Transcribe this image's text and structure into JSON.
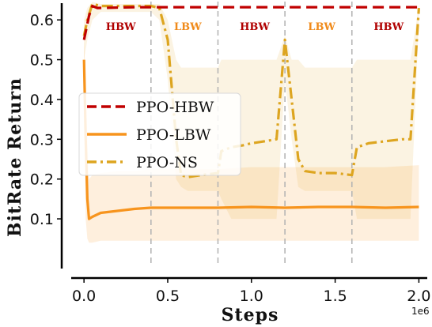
{
  "chart_data": {
    "type": "line",
    "xlabel": "Steps",
    "ylabel": "BitRate Return",
    "x_scale_label": "1e6",
    "xlim": [
      -0.1,
      2.05
    ],
    "ylim": [
      -0.015,
      0.65
    ],
    "xticks": [
      0.0,
      0.5,
      1.0,
      1.5,
      2.0
    ],
    "xtick_labels": [
      "0.0",
      "0.5",
      "1.0",
      "1.5",
      "2.0"
    ],
    "yticks": [
      0.1,
      0.2,
      0.3,
      0.4,
      0.5,
      0.6
    ],
    "ytick_labels": [
      "0.1",
      "0.2",
      "0.3",
      "0.4",
      "0.5",
      "0.6"
    ],
    "phase_boundaries": [
      0.4,
      0.8,
      1.2,
      1.6
    ],
    "phases": [
      {
        "label": "HBW",
        "center": 0.22,
        "color": "#b00000"
      },
      {
        "label": "LBW",
        "center": 0.62,
        "color": "#f08a1a"
      },
      {
        "label": "HBW",
        "center": 1.02,
        "color": "#b00000"
      },
      {
        "label": "LBW",
        "center": 1.42,
        "color": "#f08a1a"
      },
      {
        "label": "HBW",
        "center": 1.82,
        "color": "#b00000"
      }
    ],
    "legend": {
      "placement": "center-left"
    },
    "series": [
      {
        "name": "PPO-HBW",
        "color": "#c00000",
        "style": "dashed",
        "x": [
          0.0,
          0.03,
          0.05,
          0.08,
          0.3,
          1.0,
          1.5,
          2.0
        ],
        "y": [
          0.55,
          0.61,
          0.635,
          0.63,
          0.632,
          0.632,
          0.632,
          0.632
        ]
      },
      {
        "name": "PPO-LBW",
        "color": "#f7941d",
        "style": "solid",
        "x": [
          0.0,
          0.01,
          0.02,
          0.03,
          0.05,
          0.1,
          0.2,
          0.3,
          0.4,
          0.6,
          0.8,
          1.0,
          1.2,
          1.4,
          1.6,
          1.8,
          2.0
        ],
        "y": [
          0.5,
          0.3,
          0.15,
          0.1,
          0.105,
          0.115,
          0.12,
          0.125,
          0.128,
          0.128,
          0.128,
          0.13,
          0.128,
          0.13,
          0.13,
          0.128,
          0.13
        ],
        "band_lower": [
          0.42,
          0.1,
          0.05,
          0.04,
          0.04,
          0.045,
          0.045,
          0.045,
          0.045,
          0.045,
          0.045,
          0.045,
          0.045,
          0.045,
          0.045,
          0.045,
          0.045
        ],
        "band_upper": [
          0.55,
          0.45,
          0.3,
          0.2,
          0.21,
          0.215,
          0.22,
          0.22,
          0.225,
          0.225,
          0.225,
          0.23,
          0.23,
          0.23,
          0.23,
          0.23,
          0.235
        ]
      },
      {
        "name": "PPO-NS",
        "color": "#dda520",
        "style": "dashdot",
        "x": [
          0.0,
          0.02,
          0.05,
          0.1,
          0.2,
          0.4,
          0.45,
          0.5,
          0.55,
          0.58,
          0.62,
          0.7,
          0.8,
          0.82,
          0.88,
          0.95,
          1.0,
          1.08,
          1.15,
          1.2,
          1.24,
          1.28,
          1.32,
          1.4,
          1.5,
          1.6,
          1.63,
          1.7,
          1.8,
          1.9,
          1.95,
          1.98,
          2.0
        ],
        "y": [
          0.56,
          0.6,
          0.64,
          0.635,
          0.635,
          0.635,
          0.63,
          0.55,
          0.3,
          0.21,
          0.205,
          0.21,
          0.215,
          0.27,
          0.28,
          0.285,
          0.29,
          0.295,
          0.3,
          0.55,
          0.4,
          0.25,
          0.22,
          0.215,
          0.215,
          0.21,
          0.28,
          0.29,
          0.295,
          0.3,
          0.3,
          0.5,
          0.63
        ],
        "band_lower": [
          0.5,
          0.55,
          0.6,
          0.62,
          0.62,
          0.62,
          0.6,
          0.45,
          0.2,
          0.18,
          0.17,
          0.17,
          0.17,
          0.15,
          0.1,
          0.1,
          0.1,
          0.1,
          0.1,
          0.45,
          0.3,
          0.18,
          0.17,
          0.17,
          0.17,
          0.17,
          0.1,
          0.1,
          0.1,
          0.1,
          0.1,
          0.4,
          0.6
        ],
        "band_upper": [
          0.6,
          0.63,
          0.645,
          0.64,
          0.64,
          0.64,
          0.64,
          0.6,
          0.5,
          0.48,
          0.48,
          0.48,
          0.48,
          0.5,
          0.5,
          0.5,
          0.5,
          0.5,
          0.5,
          0.56,
          0.5,
          0.5,
          0.48,
          0.48,
          0.48,
          0.48,
          0.5,
          0.5,
          0.5,
          0.5,
          0.5,
          0.58,
          0.64
        ]
      }
    ]
  }
}
